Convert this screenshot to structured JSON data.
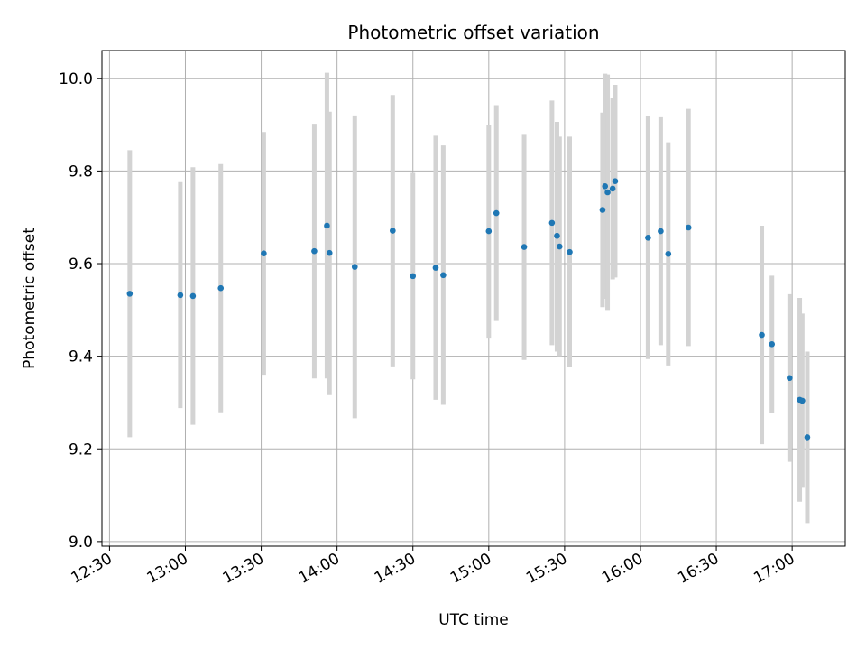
{
  "chart_data": {
    "type": "scatter",
    "title": "Photometric offset variation",
    "xlabel": "UTC time",
    "ylabel": "Photometric offset",
    "grid": true,
    "x_range": [
      "12:27",
      "17:21"
    ],
    "ylim": [
      8.99,
      10.06
    ],
    "x_ticks": [
      "12:30",
      "13:00",
      "13:30",
      "14:00",
      "14:30",
      "15:00",
      "15:30",
      "16:00",
      "16:30",
      "17:00"
    ],
    "y_ticks": [
      "9.0",
      "9.2",
      "9.4",
      "9.6",
      "9.8",
      "10.0"
    ],
    "series": [
      {
        "colors": {
          "point": "#1f77b4",
          "errorbar": "#d3d3d3"
        },
        "points": [
          {
            "t": "12:38",
            "y": 9.535,
            "lo": 9.225,
            "hi": 9.845
          },
          {
            "t": "12:58",
            "y": 9.532,
            "lo": 9.288,
            "hi": 9.776
          },
          {
            "t": "13:03",
            "y": 9.53,
            "lo": 9.252,
            "hi": 9.808
          },
          {
            "t": "13:14",
            "y": 9.547,
            "lo": 9.279,
            "hi": 9.815
          },
          {
            "t": "13:31",
            "y": 9.622,
            "lo": 9.36,
            "hi": 9.884
          },
          {
            "t": "13:51",
            "y": 9.627,
            "lo": 9.352,
            "hi": 9.902
          },
          {
            "t": "13:56",
            "y": 9.682,
            "lo": 9.352,
            "hi": 10.012
          },
          {
            "t": "13:57",
            "y": 9.623,
            "lo": 9.318,
            "hi": 9.928
          },
          {
            "t": "14:07",
            "y": 9.593,
            "lo": 9.266,
            "hi": 9.92
          },
          {
            "t": "14:22",
            "y": 9.671,
            "lo": 9.378,
            "hi": 9.964
          },
          {
            "t": "14:30",
            "y": 9.573,
            "lo": 9.35,
            "hi": 9.796
          },
          {
            "t": "14:39",
            "y": 9.591,
            "lo": 9.306,
            "hi": 9.876
          },
          {
            "t": "14:42",
            "y": 9.575,
            "lo": 9.295,
            "hi": 9.855
          },
          {
            "t": "15:00",
            "y": 9.67,
            "lo": 9.44,
            "hi": 9.9
          },
          {
            "t": "15:03",
            "y": 9.709,
            "lo": 9.476,
            "hi": 9.942
          },
          {
            "t": "15:14",
            "y": 9.636,
            "lo": 9.392,
            "hi": 9.88
          },
          {
            "t": "15:25",
            "y": 9.688,
            "lo": 9.424,
            "hi": 9.952
          },
          {
            "t": "15:27",
            "y": 9.66,
            "lo": 9.41,
            "hi": 9.906
          },
          {
            "t": "15:28",
            "y": 9.637,
            "lo": 9.4,
            "hi": 9.874
          },
          {
            "t": "15:32",
            "y": 9.625,
            "lo": 9.376,
            "hi": 9.874
          },
          {
            "t": "15:45",
            "y": 9.716,
            "lo": 9.506,
            "hi": 9.926
          },
          {
            "t": "15:46",
            "y": 9.767,
            "lo": 9.524,
            "hi": 10.01
          },
          {
            "t": "15:47",
            "y": 9.754,
            "lo": 9.5,
            "hi": 10.008
          },
          {
            "t": "15:49",
            "y": 9.762,
            "lo": 9.566,
            "hi": 9.958
          },
          {
            "t": "15:50",
            "y": 9.778,
            "lo": 9.57,
            "hi": 9.986
          },
          {
            "t": "16:03",
            "y": 9.656,
            "lo": 9.394,
            "hi": 9.918
          },
          {
            "t": "16:08",
            "y": 9.67,
            "lo": 9.424,
            "hi": 9.916
          },
          {
            "t": "16:11",
            "y": 9.621,
            "lo": 9.38,
            "hi": 9.862
          },
          {
            "t": "16:19",
            "y": 9.678,
            "lo": 9.422,
            "hi": 9.934
          },
          {
            "t": "16:48",
            "y": 9.446,
            "lo": 9.21,
            "hi": 9.682
          },
          {
            "t": "16:52",
            "y": 9.426,
            "lo": 9.278,
            "hi": 9.574
          },
          {
            "t": "16:59",
            "y": 9.353,
            "lo": 9.172,
            "hi": 9.534
          },
          {
            "t": "17:03",
            "y": 9.306,
            "lo": 9.086,
            "hi": 9.526
          },
          {
            "t": "17:04",
            "y": 9.304,
            "lo": 9.116,
            "hi": 9.492
          },
          {
            "t": "17:06",
            "y": 9.225,
            "lo": 9.04,
            "hi": 9.41
          }
        ]
      }
    ]
  }
}
